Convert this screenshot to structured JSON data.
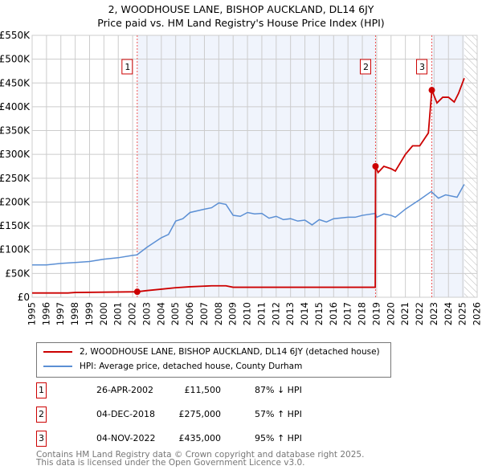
{
  "chart_data": {
    "type": "line",
    "title": "2, WOODHOUSE LANE, BISHOP AUCKLAND, DL14 6JY",
    "subtitle": "Price paid vs. HM Land Registry's House Price Index (HPI)",
    "xlim": [
      1995,
      2026
    ],
    "ylim": [
      0,
      550000
    ],
    "x_ticks": [
      "1995",
      "1996",
      "1997",
      "1998",
      "1999",
      "2000",
      "2001",
      "2002",
      "2003",
      "2004",
      "2005",
      "2006",
      "2007",
      "2008",
      "2009",
      "2010",
      "2011",
      "2012",
      "2013",
      "2014",
      "2015",
      "2016",
      "2017",
      "2018",
      "2019",
      "2020",
      "2021",
      "2022",
      "2023",
      "2024",
      "2025",
      "2026"
    ],
    "y_ticks": [
      "£0",
      "£50K",
      "£100K",
      "£150K",
      "£200K",
      "£250K",
      "£300K",
      "£350K",
      "£400K",
      "£450K",
      "£500K",
      "£550K"
    ],
    "grid": true,
    "series": [
      {
        "name": "2, WOODHOUSE LANE, BISHOP AUCKLAND, DL14 6JY (detached house)",
        "color": "#cc0000",
        "x": [
          1995,
          1997.5,
          1998,
          2002.3,
          2003,
          2004,
          2005,
          2006,
          2007.5,
          2008.5,
          2009,
          2018.9,
          2018.92,
          2019.1,
          2019.5,
          2020,
          2020.3,
          2021,
          2021.5,
          2022,
          2022.6,
          2022.84,
          2023.2,
          2023.6,
          2024,
          2024.4,
          2024.7,
          2025.1
        ],
        "y": [
          9000,
          9000,
          10000,
          11500,
          14000,
          17000,
          20000,
          22000,
          24000,
          24000,
          21000,
          21000,
          275000,
          262000,
          275000,
          270000,
          265000,
          300000,
          318000,
          318000,
          345000,
          435000,
          408000,
          420000,
          420000,
          410000,
          428000,
          460000
        ]
      },
      {
        "name": "HPI: Average price, detached house, County Durham",
        "color": "#5b8fd4",
        "x": [
          1995,
          1996,
          1997,
          1998,
          1999,
          2000,
          2001,
          2002,
          2002.3,
          2003,
          2004,
          2004.5,
          2005,
          2005.5,
          2006,
          2007,
          2007.5,
          2008,
          2008.5,
          2009,
          2009.5,
          2010,
          2010.5,
          2011,
          2011.5,
          2012,
          2012.5,
          2013,
          2013.5,
          2014,
          2014.5,
          2015,
          2015.5,
          2016,
          2017,
          2017.5,
          2018,
          2018.9,
          2019,
          2019.5,
          2020,
          2020.3,
          2021,
          2021.5,
          2022,
          2022.8,
          2023.3,
          2023.8,
          2024.3,
          2024.6,
          2025,
          2025.1
        ],
        "y": [
          68000,
          68000,
          71000,
          73000,
          75000,
          80000,
          83000,
          88000,
          89000,
          105000,
          125000,
          132000,
          160000,
          165000,
          178000,
          185000,
          188000,
          198000,
          195000,
          172000,
          170000,
          178000,
          175000,
          176000,
          166000,
          170000,
          163000,
          165000,
          160000,
          162000,
          152000,
          163000,
          158000,
          165000,
          168000,
          168000,
          172000,
          176000,
          168000,
          175000,
          172000,
          168000,
          185000,
          195000,
          205000,
          222000,
          208000,
          215000,
          212000,
          210000,
          232000,
          237000
        ]
      }
    ],
    "sales": [
      {
        "n": "1",
        "x": 2002.32,
        "y": 11500,
        "date": "26-APR-2002",
        "price": "£11,500",
        "hpi": "87% ↓ HPI"
      },
      {
        "n": "2",
        "x": 2018.92,
        "y": 275000,
        "date": "04-DEC-2018",
        "price": "£275,000",
        "hpi": "57% ↑ HPI"
      },
      {
        "n": "3",
        "x": 2022.84,
        "y": 435000,
        "date": "04-NOV-2022",
        "price": "£435,000",
        "hpi": "95% ↑ HPI"
      }
    ],
    "forecast_start": 2025.1,
    "legend_position": "below"
  },
  "footer": {
    "line1": "Contains HM Land Registry data © Crown copyright and database right 2025.",
    "line2": "This data is licensed under the Open Government Licence v3.0."
  }
}
